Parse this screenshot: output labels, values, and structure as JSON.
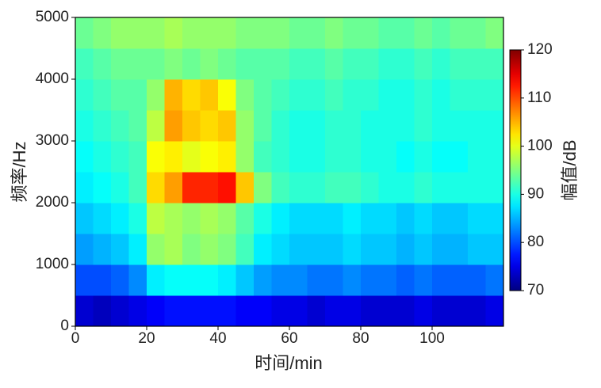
{
  "chart_data": {
    "type": "heatmap",
    "colormap": "jet",
    "xlabel": "时间/min",
    "ylabel": "频率/Hz",
    "colorbar_label": "幅值/dB",
    "xlim": [
      0,
      120
    ],
    "ylim": [
      0,
      5000
    ],
    "xticks": [
      0,
      20,
      40,
      60,
      80,
      100
    ],
    "yticks": [
      0,
      1000,
      2000,
      3000,
      4000,
      5000
    ],
    "clim": [
      70,
      120
    ],
    "cticks": [
      70,
      80,
      90,
      100,
      110,
      120
    ],
    "xbins": [
      0,
      5,
      10,
      15,
      20,
      25,
      30,
      35,
      40,
      45,
      50,
      55,
      60,
      65,
      70,
      75,
      80,
      85,
      90,
      95,
      100,
      105,
      110,
      115,
      120
    ],
    "ybins": [
      0,
      500,
      1000,
      1500,
      2000,
      2500,
      3000,
      3500,
      4000,
      4500,
      5000
    ],
    "z": [
      [
        74,
        73,
        74,
        75,
        76,
        77,
        77,
        77,
        77,
        76,
        76,
        75,
        75,
        74,
        75,
        75,
        74,
        74,
        74,
        75,
        74,
        74,
        74,
        75
      ],
      [
        80,
        80,
        81,
        83,
        88,
        89,
        89,
        89,
        88,
        86,
        84,
        83,
        83,
        82,
        82,
        83,
        82,
        82,
        81,
        82,
        81,
        81,
        81,
        82
      ],
      [
        84,
        85,
        86,
        88,
        96,
        97,
        95,
        96,
        95,
        92,
        88,
        87,
        86,
        86,
        86,
        87,
        86,
        86,
        85,
        86,
        85,
        85,
        86,
        86
      ],
      [
        86,
        87,
        88,
        90,
        98,
        97,
        96,
        97,
        96,
        93,
        90,
        88,
        87,
        87,
        87,
        88,
        87,
        87,
        86,
        87,
        86,
        86,
        87,
        87
      ],
      [
        88,
        89,
        90,
        92,
        103,
        106,
        112,
        112,
        113,
        104,
        95,
        92,
        91,
        91,
        92,
        92,
        91,
        90,
        90,
        91,
        90,
        90,
        90,
        90
      ],
      [
        89,
        90,
        91,
        92,
        101,
        102,
        100,
        101,
        102,
        96,
        92,
        91,
        90,
        90,
        91,
        91,
        90,
        90,
        89,
        90,
        89,
        89,
        90,
        90
      ],
      [
        90,
        91,
        92,
        93,
        98,
        106,
        104,
        103,
        104,
        96,
        93,
        91,
        90,
        90,
        91,
        91,
        90,
        90,
        90,
        91,
        90,
        90,
        90,
        90
      ],
      [
        91,
        92,
        93,
        93,
        96,
        105,
        103,
        104,
        101,
        95,
        93,
        92,
        91,
        91,
        92,
        91,
        91,
        90,
        90,
        91,
        90,
        91,
        91,
        91
      ],
      [
        92,
        93,
        94,
        94,
        94,
        95,
        94,
        95,
        94,
        93,
        93,
        93,
        92,
        92,
        93,
        92,
        92,
        91,
        91,
        92,
        91,
        92,
        92,
        92
      ],
      [
        94,
        95,
        96,
        96,
        96,
        97,
        96,
        96,
        96,
        95,
        95,
        95,
        94,
        94,
        95,
        94,
        94,
        93,
        93,
        94,
        93,
        94,
        94,
        95
      ]
    ]
  }
}
